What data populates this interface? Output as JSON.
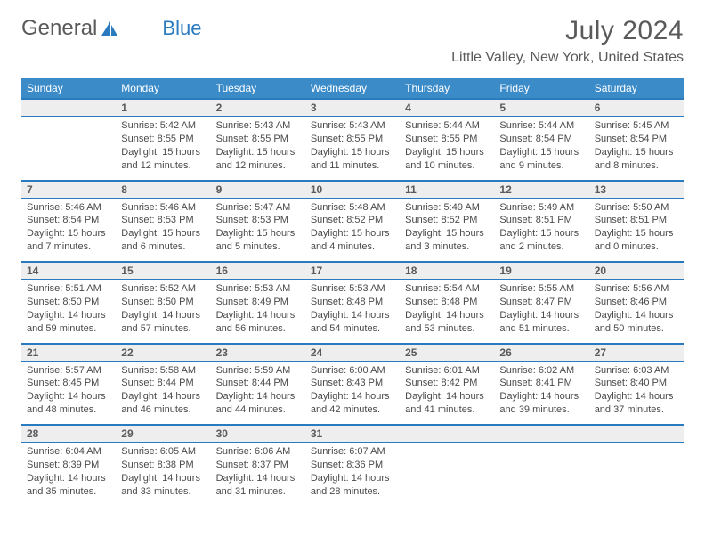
{
  "brand": {
    "part1": "General",
    "part2": "Blue"
  },
  "title": "July 2024",
  "location": "Little Valley, New York, United States",
  "colors": {
    "header_bg": "#3b8bc9",
    "accent": "#2a7abf",
    "daynum_bg": "#eeeeee",
    "text": "#4a4a4a",
    "title_text": "#5a5a5a",
    "page_bg": "#ffffff"
  },
  "fonts": {
    "base_size": 11,
    "title_size": 30,
    "location_size": 16,
    "header_size": 12
  },
  "day_headers": [
    "Sunday",
    "Monday",
    "Tuesday",
    "Wednesday",
    "Thursday",
    "Friday",
    "Saturday"
  ],
  "weeks": [
    [
      null,
      {
        "n": "1",
        "sunrise": "Sunrise: 5:42 AM",
        "sunset": "Sunset: 8:55 PM",
        "day1": "Daylight: 15 hours",
        "day2": "and 12 minutes."
      },
      {
        "n": "2",
        "sunrise": "Sunrise: 5:43 AM",
        "sunset": "Sunset: 8:55 PM",
        "day1": "Daylight: 15 hours",
        "day2": "and 12 minutes."
      },
      {
        "n": "3",
        "sunrise": "Sunrise: 5:43 AM",
        "sunset": "Sunset: 8:55 PM",
        "day1": "Daylight: 15 hours",
        "day2": "and 11 minutes."
      },
      {
        "n": "4",
        "sunrise": "Sunrise: 5:44 AM",
        "sunset": "Sunset: 8:55 PM",
        "day1": "Daylight: 15 hours",
        "day2": "and 10 minutes."
      },
      {
        "n": "5",
        "sunrise": "Sunrise: 5:44 AM",
        "sunset": "Sunset: 8:54 PM",
        "day1": "Daylight: 15 hours",
        "day2": "and 9 minutes."
      },
      {
        "n": "6",
        "sunrise": "Sunrise: 5:45 AM",
        "sunset": "Sunset: 8:54 PM",
        "day1": "Daylight: 15 hours",
        "day2": "and 8 minutes."
      }
    ],
    [
      {
        "n": "7",
        "sunrise": "Sunrise: 5:46 AM",
        "sunset": "Sunset: 8:54 PM",
        "day1": "Daylight: 15 hours",
        "day2": "and 7 minutes."
      },
      {
        "n": "8",
        "sunrise": "Sunrise: 5:46 AM",
        "sunset": "Sunset: 8:53 PM",
        "day1": "Daylight: 15 hours",
        "day2": "and 6 minutes."
      },
      {
        "n": "9",
        "sunrise": "Sunrise: 5:47 AM",
        "sunset": "Sunset: 8:53 PM",
        "day1": "Daylight: 15 hours",
        "day2": "and 5 minutes."
      },
      {
        "n": "10",
        "sunrise": "Sunrise: 5:48 AM",
        "sunset": "Sunset: 8:52 PM",
        "day1": "Daylight: 15 hours",
        "day2": "and 4 minutes."
      },
      {
        "n": "11",
        "sunrise": "Sunrise: 5:49 AM",
        "sunset": "Sunset: 8:52 PM",
        "day1": "Daylight: 15 hours",
        "day2": "and 3 minutes."
      },
      {
        "n": "12",
        "sunrise": "Sunrise: 5:49 AM",
        "sunset": "Sunset: 8:51 PM",
        "day1": "Daylight: 15 hours",
        "day2": "and 2 minutes."
      },
      {
        "n": "13",
        "sunrise": "Sunrise: 5:50 AM",
        "sunset": "Sunset: 8:51 PM",
        "day1": "Daylight: 15 hours",
        "day2": "and 0 minutes."
      }
    ],
    [
      {
        "n": "14",
        "sunrise": "Sunrise: 5:51 AM",
        "sunset": "Sunset: 8:50 PM",
        "day1": "Daylight: 14 hours",
        "day2": "and 59 minutes."
      },
      {
        "n": "15",
        "sunrise": "Sunrise: 5:52 AM",
        "sunset": "Sunset: 8:50 PM",
        "day1": "Daylight: 14 hours",
        "day2": "and 57 minutes."
      },
      {
        "n": "16",
        "sunrise": "Sunrise: 5:53 AM",
        "sunset": "Sunset: 8:49 PM",
        "day1": "Daylight: 14 hours",
        "day2": "and 56 minutes."
      },
      {
        "n": "17",
        "sunrise": "Sunrise: 5:53 AM",
        "sunset": "Sunset: 8:48 PM",
        "day1": "Daylight: 14 hours",
        "day2": "and 54 minutes."
      },
      {
        "n": "18",
        "sunrise": "Sunrise: 5:54 AM",
        "sunset": "Sunset: 8:48 PM",
        "day1": "Daylight: 14 hours",
        "day2": "and 53 minutes."
      },
      {
        "n": "19",
        "sunrise": "Sunrise: 5:55 AM",
        "sunset": "Sunset: 8:47 PM",
        "day1": "Daylight: 14 hours",
        "day2": "and 51 minutes."
      },
      {
        "n": "20",
        "sunrise": "Sunrise: 5:56 AM",
        "sunset": "Sunset: 8:46 PM",
        "day1": "Daylight: 14 hours",
        "day2": "and 50 minutes."
      }
    ],
    [
      {
        "n": "21",
        "sunrise": "Sunrise: 5:57 AM",
        "sunset": "Sunset: 8:45 PM",
        "day1": "Daylight: 14 hours",
        "day2": "and 48 minutes."
      },
      {
        "n": "22",
        "sunrise": "Sunrise: 5:58 AM",
        "sunset": "Sunset: 8:44 PM",
        "day1": "Daylight: 14 hours",
        "day2": "and 46 minutes."
      },
      {
        "n": "23",
        "sunrise": "Sunrise: 5:59 AM",
        "sunset": "Sunset: 8:44 PM",
        "day1": "Daylight: 14 hours",
        "day2": "and 44 minutes."
      },
      {
        "n": "24",
        "sunrise": "Sunrise: 6:00 AM",
        "sunset": "Sunset: 8:43 PM",
        "day1": "Daylight: 14 hours",
        "day2": "and 42 minutes."
      },
      {
        "n": "25",
        "sunrise": "Sunrise: 6:01 AM",
        "sunset": "Sunset: 8:42 PM",
        "day1": "Daylight: 14 hours",
        "day2": "and 41 minutes."
      },
      {
        "n": "26",
        "sunrise": "Sunrise: 6:02 AM",
        "sunset": "Sunset: 8:41 PM",
        "day1": "Daylight: 14 hours",
        "day2": "and 39 minutes."
      },
      {
        "n": "27",
        "sunrise": "Sunrise: 6:03 AM",
        "sunset": "Sunset: 8:40 PM",
        "day1": "Daylight: 14 hours",
        "day2": "and 37 minutes."
      }
    ],
    [
      {
        "n": "28",
        "sunrise": "Sunrise: 6:04 AM",
        "sunset": "Sunset: 8:39 PM",
        "day1": "Daylight: 14 hours",
        "day2": "and 35 minutes."
      },
      {
        "n": "29",
        "sunrise": "Sunrise: 6:05 AM",
        "sunset": "Sunset: 8:38 PM",
        "day1": "Daylight: 14 hours",
        "day2": "and 33 minutes."
      },
      {
        "n": "30",
        "sunrise": "Sunrise: 6:06 AM",
        "sunset": "Sunset: 8:37 PM",
        "day1": "Daylight: 14 hours",
        "day2": "and 31 minutes."
      },
      {
        "n": "31",
        "sunrise": "Sunrise: 6:07 AM",
        "sunset": "Sunset: 8:36 PM",
        "day1": "Daylight: 14 hours",
        "day2": "and 28 minutes."
      },
      null,
      null,
      null
    ]
  ]
}
